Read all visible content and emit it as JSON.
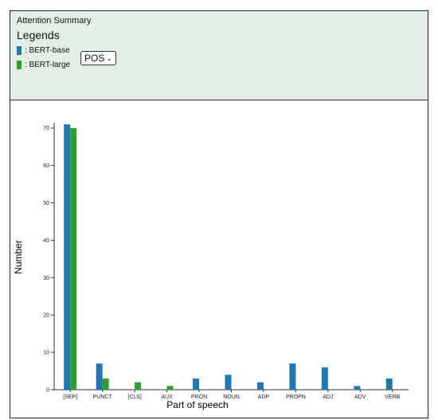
{
  "panel": {
    "title": "Attention Summary",
    "legends_heading": "Legends",
    "legend": [
      {
        "label": ": BERT-base",
        "color": "#1f77b4"
      },
      {
        "label": ": BERT-large",
        "color": "#2ca02c"
      }
    ],
    "select_value": "POS"
  },
  "chart_data": {
    "type": "bar",
    "xlabel": "Part of speech",
    "ylabel": "Number",
    "ylim": [
      0,
      71
    ],
    "yticks": [
      0,
      10,
      20,
      30,
      40,
      50,
      60,
      70
    ],
    "categories": [
      "[SEP]",
      "PUNCT",
      "[CLS]",
      "AUX",
      "PRON",
      "NOUN",
      "ADP",
      "PROPN",
      "ADJ",
      "ADV",
      "VERB"
    ],
    "series": [
      {
        "name": "BERT-base",
        "color": "#1f77b4",
        "values": [
          71,
          7,
          0,
          0,
          3,
          4,
          2,
          7,
          6,
          1,
          3
        ]
      },
      {
        "name": "BERT-large",
        "color": "#2ca02c",
        "values": [
          70,
          3,
          2,
          1,
          0,
          0,
          0,
          0,
          0,
          0,
          0
        ]
      }
    ]
  }
}
